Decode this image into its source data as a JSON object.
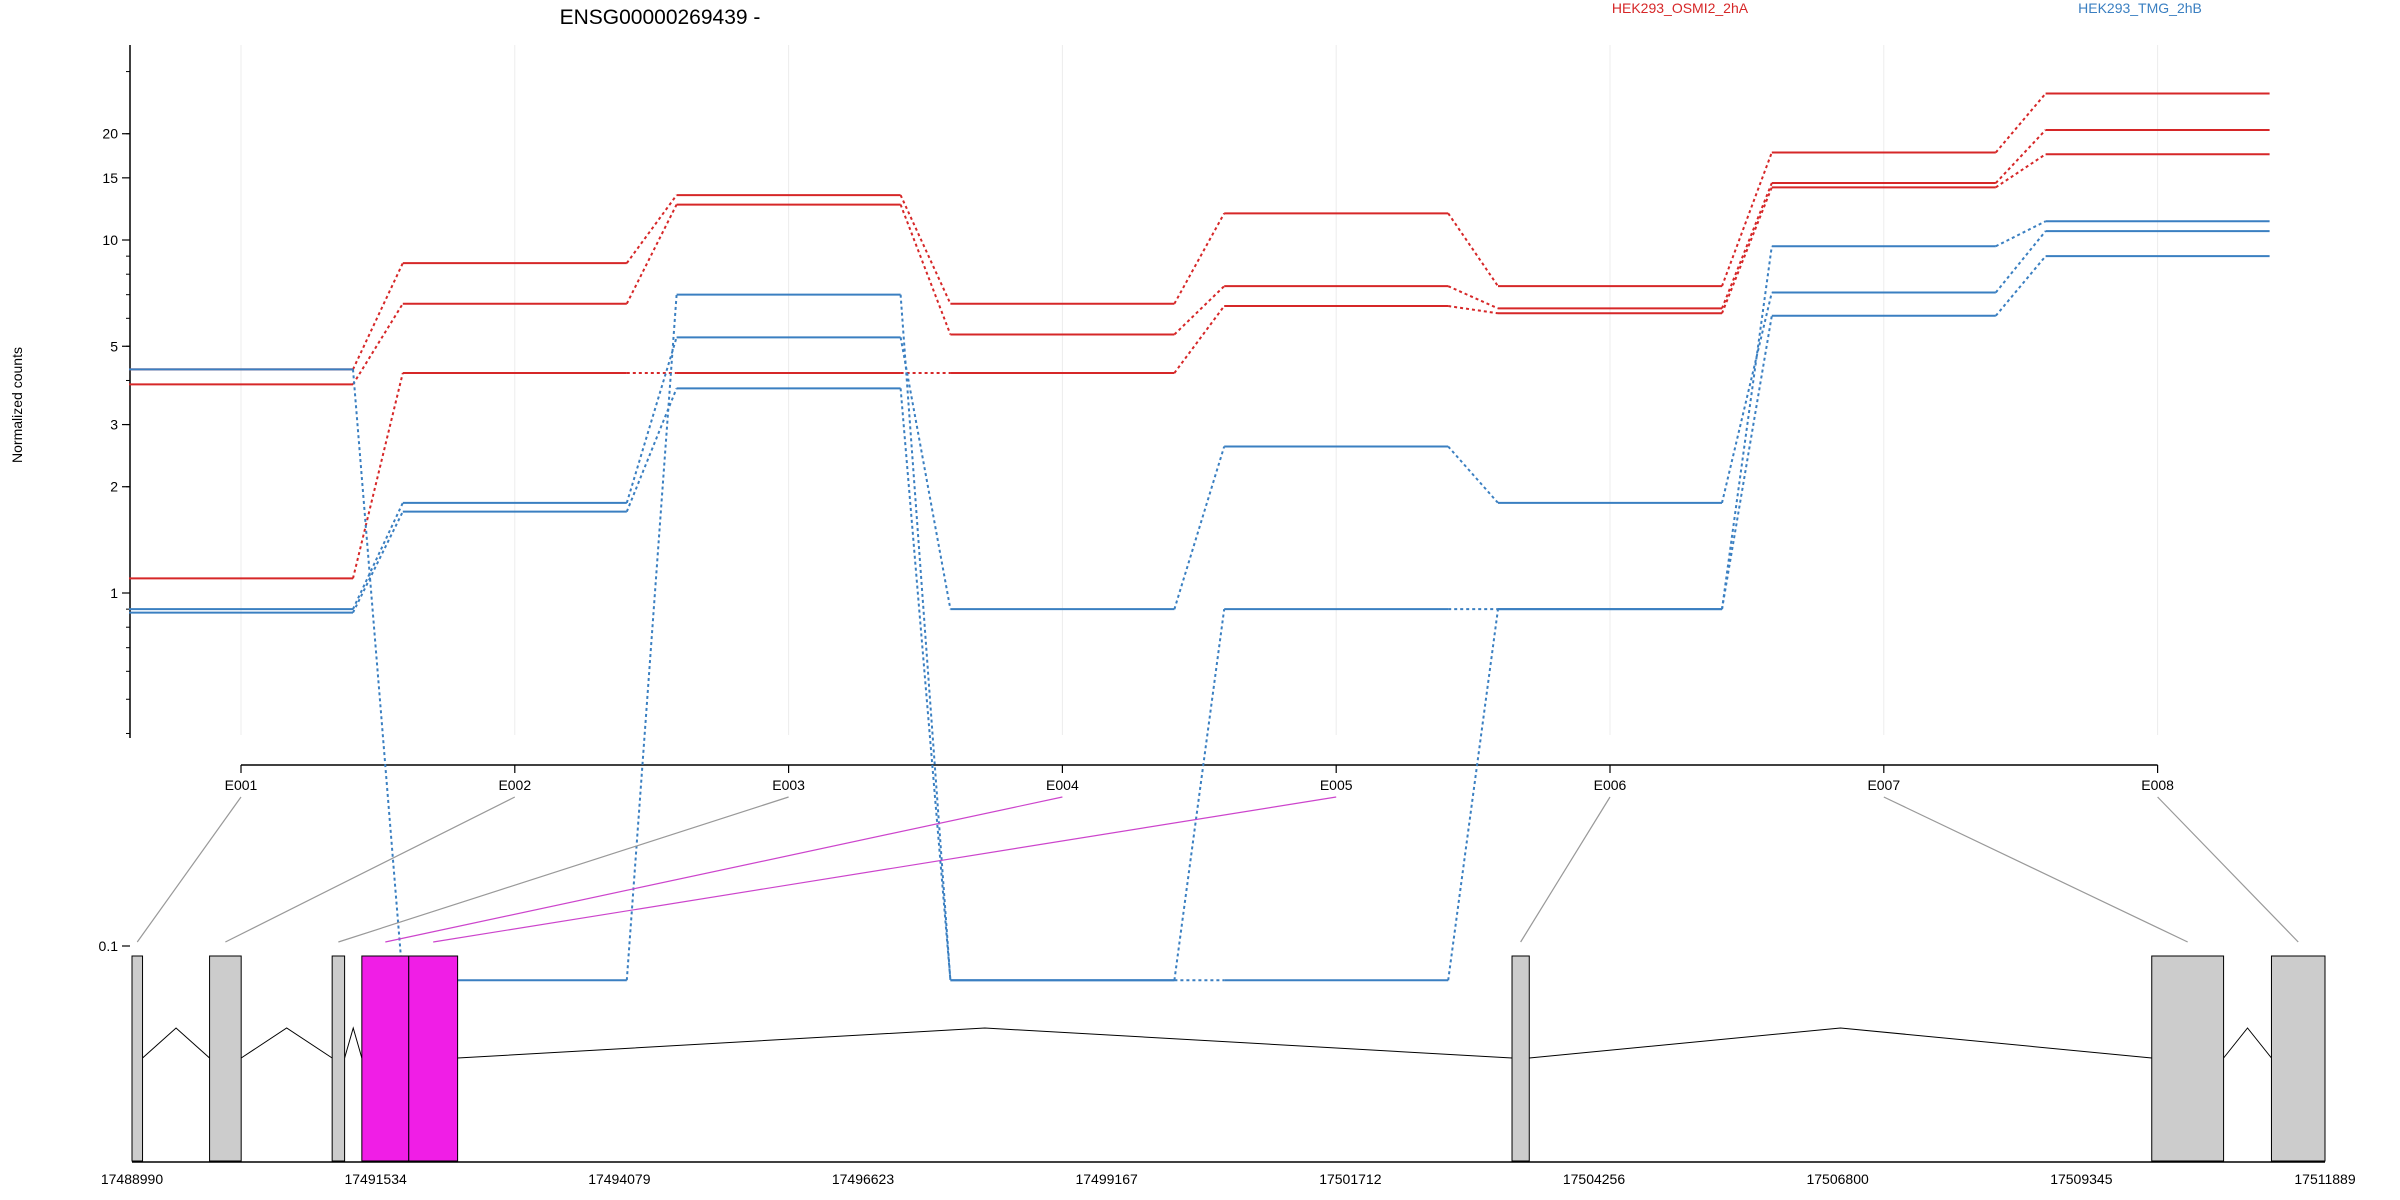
{
  "chart_data": {
    "type": "line",
    "title": "ENSG00000269439 -",
    "ylabel": "Normalized counts",
    "y_scale": "log",
    "y_ticks": [
      0.1,
      1,
      2,
      3,
      5,
      10,
      15,
      20
    ],
    "categories": [
      "E001",
      "E002",
      "E003",
      "E004",
      "E005",
      "E006",
      "E007",
      "E008"
    ],
    "legend": [
      {
        "name": "HEK293_OSMI2_2hA",
        "color": "#d62728"
      },
      {
        "name": "HEK293_TMG_2hB",
        "color": "#3a7fc1"
      }
    ],
    "series": [
      {
        "group": "HEK293_OSMI2_2hA",
        "color": "#d62728",
        "values": [
          4.3,
          8.6,
          13.4,
          6.6,
          11.9,
          7.4,
          17.7,
          26.0
        ]
      },
      {
        "group": "HEK293_OSMI2_2hA",
        "color": "#d62728",
        "values": [
          3.9,
          6.6,
          12.6,
          5.4,
          7.4,
          6.4,
          14.5,
          20.5
        ]
      },
      {
        "group": "HEK293_OSMI2_2hA",
        "color": "#d62728",
        "values": [
          1.1,
          4.2,
          4.2,
          4.2,
          6.5,
          6.2,
          14.1,
          17.5
        ]
      },
      {
        "group": "HEK293_TMG_2hB",
        "color": "#3a7fc1",
        "values": [
          4.3,
          0.08,
          7.0,
          0.08,
          0.08,
          0.9,
          9.6,
          11.3
        ]
      },
      {
        "group": "HEK293_TMG_2hB",
        "color": "#3a7fc1",
        "values": [
          0.9,
          1.8,
          5.3,
          0.9,
          2.6,
          1.8,
          7.1,
          10.6
        ]
      },
      {
        "group": "HEK293_TMG_2hB",
        "color": "#3a7fc1",
        "values": [
          0.88,
          1.7,
          3.8,
          0.08,
          0.9,
          0.9,
          6.1,
          9.0
        ]
      }
    ]
  },
  "gene_model": {
    "coordinate_labels": [
      "17488990",
      "17491534",
      "17494079",
      "17496623",
      "17499167",
      "17501712",
      "17504256",
      "17506800",
      "17509345",
      "17511889"
    ],
    "x_range": [
      17488990,
      17511889
    ],
    "default_color": "#cccccc",
    "highlight_color": "#f01ee6",
    "connector_color": "#999999",
    "highlight_connector_color": "#cc44cc",
    "exons": [
      {
        "id": "E001",
        "start": 17488990,
        "end": 17489100,
        "highlight": false
      },
      {
        "id": "E002",
        "start": 17489800,
        "end": 17490130,
        "highlight": false
      },
      {
        "id": "E003",
        "start": 17491080,
        "end": 17491210,
        "highlight": false
      },
      {
        "id": "E004",
        "start": 17491390,
        "end": 17491880,
        "highlight": true
      },
      {
        "id": "E005",
        "start": 17491880,
        "end": 17492390,
        "highlight": true
      },
      {
        "id": "E006",
        "start": 17503400,
        "end": 17503580,
        "highlight": false
      },
      {
        "id": "E007",
        "start": 17510080,
        "end": 17510830,
        "highlight": false
      },
      {
        "id": "E008",
        "start": 17511330,
        "end": 17511889,
        "highlight": false
      }
    ]
  }
}
